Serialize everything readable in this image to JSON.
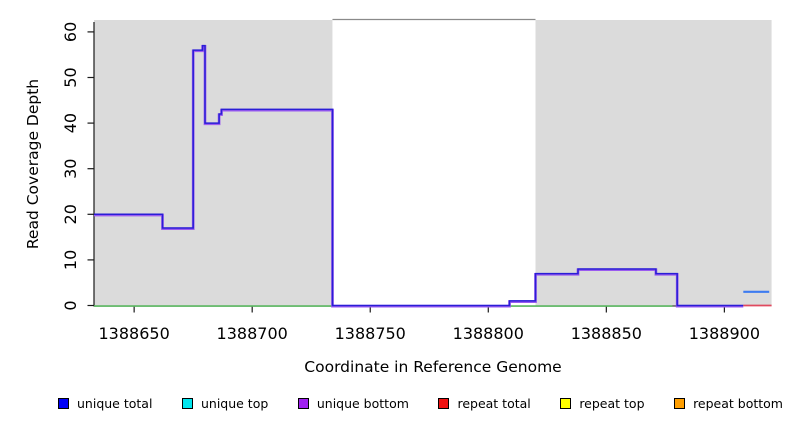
{
  "figure": {
    "xlabel": "Coordinate in Reference Genome",
    "ylabel": "Read Coverage Depth"
  },
  "legend": {
    "items": [
      {
        "label": "unique total",
        "color": "#0000f5"
      },
      {
        "label": "unique top",
        "color": "#00e5ee"
      },
      {
        "label": "unique bottom",
        "color": "#a020f0"
      },
      {
        "label": "repeat total",
        "color": "#ee1111"
      },
      {
        "label": "repeat top",
        "color": "#ffff00"
      },
      {
        "label": "repeat bottom",
        "color": "#ff9e00"
      }
    ]
  },
  "chart_data": {
    "type": "line",
    "subtype": "step-coverage",
    "title": "",
    "xlabel": "Coordinate in Reference Genome",
    "ylabel": "Read Coverage Depth",
    "xlim": [
      1388633,
      1388920
    ],
    "ylim": [
      0,
      62.6
    ],
    "xticks": [
      1388650,
      1388700,
      1388750,
      1388800,
      1388850,
      1388900
    ],
    "yticks": [
      0,
      10,
      20,
      30,
      40,
      50,
      60
    ],
    "grid": "off",
    "legend_position": "bottom",
    "regions": [
      {
        "name": "shaded-region-left",
        "x0": 1388633,
        "x1": 1388734,
        "color": "#dbdbdb"
      },
      {
        "name": "white-gap-region",
        "x0": 1388734,
        "x1": 1388820,
        "color": "#ffffff",
        "top_border": "#8a8a8a"
      },
      {
        "name": "shaded-region-right",
        "x0": 1388820,
        "x1": 1388920,
        "color": "#dbdbdb"
      }
    ],
    "series": [
      {
        "name": "baseline-green",
        "legend": null,
        "color": "#58b55e",
        "width": 1.6,
        "dy": 0.6,
        "steps": [
          [
            1388633,
            0
          ]
        ],
        "x_end": 1388878
      },
      {
        "name": "unique-bottom",
        "legend": "unique bottom",
        "color": "#9a5bf0",
        "width": 2.7,
        "dy": 0.7,
        "steps": [
          [
            1388633,
            20
          ],
          [
            1388662,
            17
          ],
          [
            1388675,
            56
          ],
          [
            1388679,
            57
          ],
          [
            1388680,
            40
          ],
          [
            1388686,
            42
          ],
          [
            1388687,
            43
          ],
          [
            1388734,
            0
          ],
          [
            1388809,
            1
          ],
          [
            1388820,
            7
          ],
          [
            1388838,
            8
          ],
          [
            1388871,
            7
          ],
          [
            1388880,
            0
          ]
        ],
        "x_end": 1388908
      },
      {
        "name": "unique-total",
        "legend": "unique total",
        "color": "#2a1ed6",
        "width": 1.5,
        "dy": 0,
        "steps": [
          [
            1388633,
            20
          ],
          [
            1388662,
            17
          ],
          [
            1388675,
            56
          ],
          [
            1388679,
            57
          ],
          [
            1388680,
            40
          ],
          [
            1388686,
            42
          ],
          [
            1388687,
            43
          ],
          [
            1388734,
            0
          ],
          [
            1388809,
            1
          ],
          [
            1388820,
            7
          ],
          [
            1388838,
            8
          ],
          [
            1388871,
            7
          ],
          [
            1388880,
            0
          ]
        ],
        "x_end": 1388908
      },
      {
        "name": "unique-total-tail",
        "legend": "unique total",
        "color": "#3d7bf0",
        "width": 2.2,
        "dy": 0,
        "steps": [
          [
            1388908,
            3
          ]
        ],
        "x_end": 1388919
      },
      {
        "name": "repeat-total",
        "legend": "repeat total",
        "color": "#e04a5f",
        "width": 1.7,
        "dy": 0,
        "steps": [
          [
            1388908,
            0
          ]
        ],
        "x_end": 1388920
      }
    ]
  }
}
